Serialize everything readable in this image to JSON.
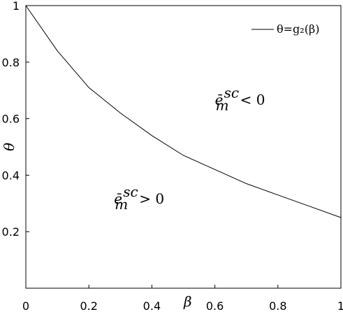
{
  "chart_data": {
    "type": "line",
    "x": [
      0,
      0.1,
      0.2,
      0.3,
      0.4,
      0.5,
      0.6,
      0.7,
      0.8,
      0.9,
      1
    ],
    "series": [
      {
        "name": "θ=g₂(β)",
        "color": "#000000",
        "values": [
          1,
          0.84,
          0.71,
          0.62,
          0.54,
          0.47,
          0.42,
          0.37,
          0.33,
          0.29,
          0.25
        ]
      }
    ],
    "xlabel": "β",
    "ylabel": "θ",
    "xlim": [
      0,
      1
    ],
    "ylim": [
      0,
      1
    ],
    "xticks": [
      0,
      0.2,
      0.4,
      0.6,
      0.8,
      1
    ],
    "yticks": [
      0.2,
      0.4,
      0.6,
      0.8,
      1
    ],
    "grid": false,
    "legend": "upper right",
    "annotations": [
      {
        "base": "ē",
        "sub": "m",
        "sup": "sc",
        "rest": "< 0",
        "x": 0.6,
        "y": 0.65
      },
      {
        "base": "ē",
        "sub": "m",
        "sup": "sc",
        "rest": "> 0",
        "x": 0.28,
        "y": 0.3
      }
    ]
  }
}
